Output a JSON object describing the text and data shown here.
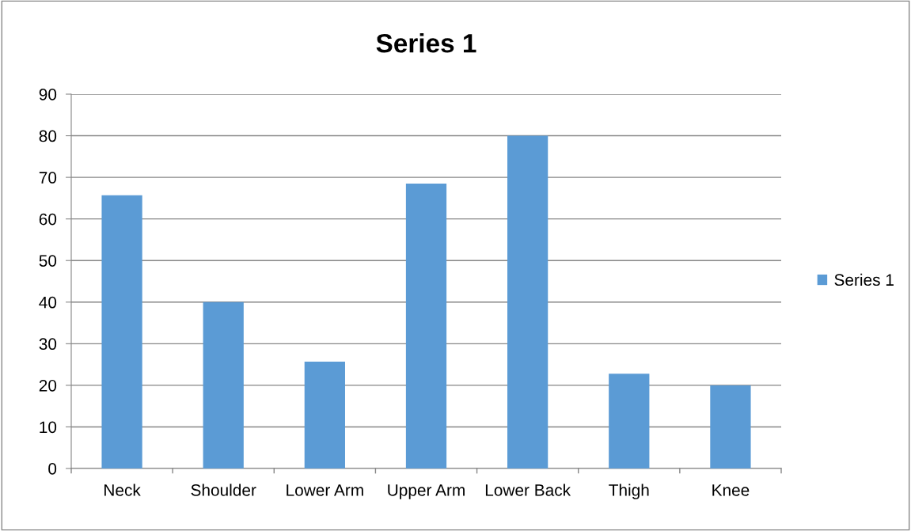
{
  "chart_data": {
    "type": "bar",
    "title": "Series 1",
    "categories": [
      "Neck",
      "Shoulder",
      "Lower Arm",
      "Upper Arm",
      "Lower Back",
      "Thigh",
      "Knee"
    ],
    "series": [
      {
        "name": "Series 1",
        "color": "#5b9bd5",
        "values": [
          65.7,
          40,
          25.7,
          68.5,
          80,
          22.8,
          20
        ]
      }
    ],
    "ylim": [
      0,
      90
    ],
    "yticks": [
      0,
      10,
      20,
      30,
      40,
      50,
      60,
      70,
      80,
      90
    ],
    "grid": "y",
    "legend": "right"
  }
}
